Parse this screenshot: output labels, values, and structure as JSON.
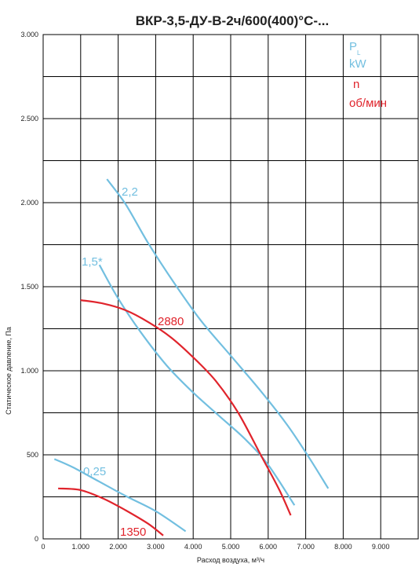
{
  "chart_data": {
    "type": "line",
    "title": "ВКР-3,5-ДУ-В-2ч/600(400)°С-...",
    "xlabel": "Расход воздуха, м³/ч",
    "ylabel": "Статическое давление, Па",
    "xlim": [
      0,
      10000
    ],
    "ylim": [
      0,
      3000
    ],
    "x_ticks": [
      {
        "value": 0,
        "label": "0"
      },
      {
        "value": 1000,
        "label": "1.000"
      },
      {
        "value": 2000,
        "label": "2.000"
      },
      {
        "value": 3000,
        "label": "3.000"
      },
      {
        "value": 4000,
        "label": "4.000"
      },
      {
        "value": 5000,
        "label": "5.000"
      },
      {
        "value": 6000,
        "label": "6.000"
      },
      {
        "value": 7000,
        "label": "7.000"
      },
      {
        "value": 8000,
        "label": "8.000"
      },
      {
        "value": 9000,
        "label": "9.000"
      }
    ],
    "y_ticks": [
      {
        "value": 0,
        "label": "0"
      },
      {
        "value": 500,
        "label": "500"
      },
      {
        "value": 1000,
        "label": "1.000"
      },
      {
        "value": 1500,
        "label": "1.500"
      },
      {
        "value": 2000,
        "label": "2.000"
      },
      {
        "value": 2500,
        "label": "2.500"
      },
      {
        "value": 3000,
        "label": "3.000"
      }
    ],
    "grid": true,
    "legend": {
      "placement": "top-right",
      "power_symbol": "P",
      "power_subscript": "L",
      "power_unit": "kW",
      "speed_symbol": "n",
      "speed_unit": "об/мин"
    },
    "power_curves": [
      {
        "label": "2,2",
        "color": "#72bfe0",
        "points": [
          [
            1700,
            2140
          ],
          [
            2200,
            1990
          ],
          [
            2800,
            1760
          ],
          [
            3500,
            1520
          ],
          [
            4200,
            1300
          ],
          [
            5000,
            1090
          ],
          [
            5800,
            880
          ],
          [
            6500,
            680
          ],
          [
            7100,
            480
          ],
          [
            7600,
            300
          ]
        ]
      },
      {
        "label": "1,5*",
        "color": "#72bfe0",
        "points": [
          [
            1500,
            1630
          ],
          [
            2000,
            1430
          ],
          [
            2600,
            1230
          ],
          [
            3300,
            1030
          ],
          [
            4000,
            870
          ],
          [
            4700,
            730
          ],
          [
            5400,
            590
          ],
          [
            6000,
            440
          ],
          [
            6700,
            200
          ]
        ]
      },
      {
        "label": "0,25",
        "color": "#72bfe0",
        "points": [
          [
            300,
            475
          ],
          [
            800,
            425
          ],
          [
            1500,
            340
          ],
          [
            2200,
            255
          ],
          [
            3000,
            165
          ],
          [
            3800,
            45
          ]
        ]
      }
    ],
    "speed_curves": [
      {
        "label": "2880",
        "color": "#e0242c",
        "points": [
          [
            1000,
            1420
          ],
          [
            1600,
            1400
          ],
          [
            2200,
            1360
          ],
          [
            2800,
            1290
          ],
          [
            3400,
            1200
          ],
          [
            4000,
            1080
          ],
          [
            4600,
            940
          ],
          [
            5200,
            750
          ],
          [
            5800,
            500
          ],
          [
            6300,
            290
          ],
          [
            6600,
            140
          ]
        ]
      },
      {
        "label": "1350",
        "color": "#e0242c",
        "points": [
          [
            400,
            300
          ],
          [
            1000,
            290
          ],
          [
            1600,
            240
          ],
          [
            2200,
            170
          ],
          [
            2800,
            90
          ],
          [
            3200,
            20
          ]
        ]
      }
    ]
  }
}
